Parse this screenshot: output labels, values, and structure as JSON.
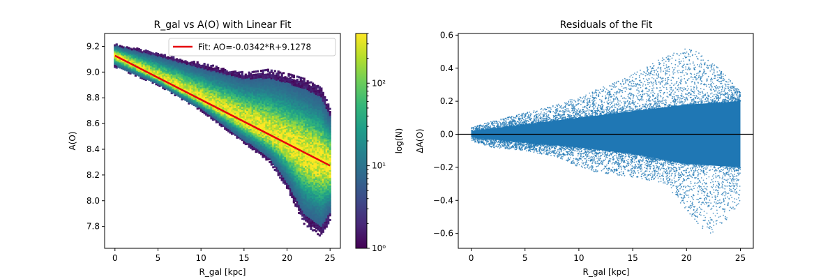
{
  "chart_data": [
    {
      "type": "heatmap",
      "title": "R_gal vs A(O) with Linear Fit",
      "xlabel": "R_gal [kpc]",
      "ylabel": "A(O)",
      "xlim": [
        -1.2,
        26.2
      ],
      "ylim": [
        7.63,
        9.3
      ],
      "xticks": [
        0,
        5,
        10,
        15,
        20,
        25
      ],
      "yticks": [
        7.8,
        8.0,
        8.2,
        8.4,
        8.6,
        8.8,
        9.0,
        9.2
      ],
      "xtick_labels": [
        "0",
        "5",
        "10",
        "15",
        "20",
        "25"
      ],
      "ytick_labels": [
        "7.8",
        "8.0",
        "8.2",
        "8.4",
        "8.6",
        "8.8",
        "9.0",
        "9.2"
      ],
      "fit": {
        "slope": -0.0342,
        "intercept": 9.1278,
        "x_range": [
          0,
          25
        ],
        "color": "#e6000b"
      },
      "legend": {
        "entries": [
          "Fit: AO=-0.0342*R+9.1278"
        ],
        "position": "upper right"
      },
      "density": {
        "center_line": {
          "start": [
            0,
            9.13
          ],
          "end": [
            25,
            8.28
          ]
        },
        "upper_envelope": [
          [
            0,
            9.22
          ],
          [
            5,
            9.15
          ],
          [
            10,
            9.07
          ],
          [
            15,
            9.0
          ],
          [
            18,
            9.02
          ],
          [
            20,
            8.99
          ],
          [
            22,
            8.95
          ],
          [
            24,
            8.88
          ],
          [
            25,
            8.72
          ]
        ],
        "lower_envelope": [
          [
            0,
            9.04
          ],
          [
            5,
            8.9
          ],
          [
            10,
            8.7
          ],
          [
            15,
            8.45
          ],
          [
            18,
            8.3
          ],
          [
            20,
            8.1
          ],
          [
            22,
            7.82
          ],
          [
            24,
            7.72
          ],
          [
            25,
            7.85
          ]
        ]
      },
      "colorbar": {
        "label": "log(N)",
        "scale": "log",
        "range": [
          1,
          400
        ],
        "ticks": [
          1,
          10,
          100
        ],
        "tick_labels": [
          "10⁰",
          "10¹",
          "10²"
        ],
        "colormap": "viridis",
        "colors": [
          "#440154",
          "#482878",
          "#3e4a89",
          "#31688e",
          "#26828e",
          "#1f9e89",
          "#35b779",
          "#6ece58",
          "#b5de2b",
          "#fde725"
        ]
      }
    },
    {
      "type": "scatter",
      "title": "Residuals of the Fit",
      "xlabel": "R_gal [kpc]",
      "ylabel": "ΔA(O)",
      "xlim": [
        -1.2,
        26.2
      ],
      "ylim": [
        -0.69,
        0.61
      ],
      "xticks": [
        0,
        5,
        10,
        15,
        20,
        25
      ],
      "yticks": [
        -0.6,
        -0.4,
        -0.2,
        0.0,
        0.2,
        0.4,
        0.6
      ],
      "xtick_labels": [
        "0",
        "5",
        "10",
        "15",
        "20",
        "25"
      ],
      "ytick_labels": [
        "−0.6",
        "−0.4",
        "−0.2",
        "0.0",
        "0.2",
        "0.4",
        "0.6"
      ],
      "point_color": "#1f77b4",
      "zero_line": {
        "y": 0,
        "color": "#000000"
      },
      "envelope_upper": [
        [
          0,
          0.04
        ],
        [
          2,
          0.08
        ],
        [
          5,
          0.13
        ],
        [
          8,
          0.18
        ],
        [
          10,
          0.23
        ],
        [
          12,
          0.28
        ],
        [
          14,
          0.33
        ],
        [
          16,
          0.4
        ],
        [
          18,
          0.47
        ],
        [
          20,
          0.52
        ],
        [
          21,
          0.5
        ],
        [
          22,
          0.45
        ],
        [
          23,
          0.4
        ],
        [
          24,
          0.33
        ],
        [
          25,
          0.26
        ]
      ],
      "envelope_lower": [
        [
          0,
          -0.04
        ],
        [
          2,
          -0.08
        ],
        [
          5,
          -0.1
        ],
        [
          8,
          -0.14
        ],
        [
          10,
          -0.2
        ],
        [
          12,
          -0.24
        ],
        [
          14,
          -0.25
        ],
        [
          16,
          -0.27
        ],
        [
          18,
          -0.3
        ],
        [
          19,
          -0.38
        ],
        [
          20,
          -0.46
        ],
        [
          21,
          -0.55
        ],
        [
          22,
          -0.64
        ],
        [
          23,
          -0.58
        ],
        [
          24,
          -0.5
        ],
        [
          25,
          -0.42
        ]
      ],
      "core_upper": [
        [
          0,
          0.02
        ],
        [
          5,
          0.06
        ],
        [
          10,
          0.1
        ],
        [
          15,
          0.14
        ],
        [
          20,
          0.18
        ],
        [
          25,
          0.2
        ]
      ],
      "core_lower": [
        [
          0,
          -0.02
        ],
        [
          5,
          -0.05
        ],
        [
          10,
          -0.08
        ],
        [
          15,
          -0.12
        ],
        [
          20,
          -0.18
        ],
        [
          25,
          -0.2
        ]
      ]
    }
  ]
}
